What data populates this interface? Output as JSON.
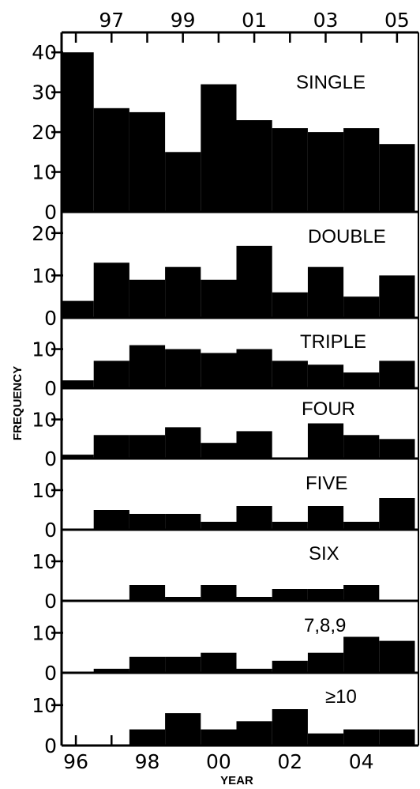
{
  "chart_data": {
    "type": "bar",
    "style": "stacked histogram panels",
    "xlabel": "YEAR",
    "ylabel": "FREQUENCY",
    "years": [
      1996,
      1997,
      1998,
      1999,
      2000,
      2001,
      2002,
      2003,
      2004,
      2005
    ],
    "bottom_tick_labels": [
      "96",
      "98",
      "00",
      "02",
      "04"
    ],
    "top_tick_labels": [
      "97",
      "99",
      "01",
      "03",
      "05"
    ],
    "bar_width_years": 1,
    "panels": [
      {
        "name": "SINGLE",
        "ylim": [
          0,
          45
        ],
        "yticks": [
          0,
          10,
          20,
          30,
          40
        ],
        "yticklabels": [
          "0",
          "10",
          "20",
          "30",
          "40"
        ],
        "x": [
          1996,
          1997,
          1998,
          1999,
          2000,
          2001,
          2002,
          2003,
          2004,
          2005
        ],
        "values": [
          40,
          26,
          25,
          15,
          32,
          23,
          21,
          20,
          21,
          17
        ]
      },
      {
        "name": "DOUBLE",
        "ylim": [
          0,
          25
        ],
        "yticks": [
          0,
          10,
          20
        ],
        "yticklabels": [
          "0",
          "10",
          "20"
        ],
        "x": [
          1996,
          1997,
          1998,
          1999,
          2000,
          2001,
          2002,
          2003,
          2004,
          2005
        ],
        "values": [
          4,
          13,
          9,
          12,
          9,
          17,
          6,
          12,
          5,
          10
        ]
      },
      {
        "name": "TRIPLE",
        "ylim": [
          0,
          18
        ],
        "yticks": [
          0,
          10
        ],
        "yticklabels": [
          "0",
          "10"
        ],
        "x": [
          1996,
          1997,
          1998,
          1999,
          2000,
          2001,
          2002,
          2003,
          2004,
          2005
        ],
        "values": [
          2,
          7,
          11,
          10,
          9,
          10,
          7,
          6,
          4,
          7
        ]
      },
      {
        "name": "FOUR",
        "ylim": [
          0,
          18
        ],
        "yticks": [
          0,
          10
        ],
        "yticklabels": [
          "0",
          "10"
        ],
        "x": [
          1996,
          1997,
          1998,
          1999,
          2000,
          2001,
          2002,
          2003,
          2004,
          2005
        ],
        "values": [
          1,
          6,
          6,
          8,
          4,
          7,
          0,
          9,
          6,
          5
        ]
      },
      {
        "name": "FIVE",
        "ylim": [
          0,
          18
        ],
        "yticks": [
          0,
          10
        ],
        "yticklabels": [
          "0",
          "10"
        ],
        "x": [
          1996,
          1997,
          1998,
          1999,
          2000,
          2001,
          2002,
          2003,
          2004,
          2005
        ],
        "values": [
          0,
          5,
          4,
          4,
          2,
          6,
          2,
          6,
          2,
          8
        ]
      },
      {
        "name": "SIX",
        "ylim": [
          0,
          18
        ],
        "yticks": [
          0,
          10
        ],
        "yticklabels": [
          "0",
          "10"
        ],
        "x": [
          1996,
          1997,
          1998,
          1999,
          2000,
          2001,
          2002,
          2003,
          2004,
          2005
        ],
        "values": [
          0,
          0,
          4,
          1,
          4,
          1,
          3,
          3,
          4,
          0
        ]
      },
      {
        "name": "7,8,9",
        "ylim": [
          0,
          18
        ],
        "yticks": [
          0,
          10
        ],
        "yticklabels": [
          "0",
          "10"
        ],
        "x": [
          1996,
          1997,
          1998,
          1999,
          2000,
          2001,
          2002,
          2003,
          2004,
          2005
        ],
        "values": [
          0,
          1,
          4,
          4,
          5,
          1,
          3,
          5,
          9,
          8
        ]
      },
      {
        "name": "≥10",
        "ylim": [
          0,
          18
        ],
        "yticks": [
          0,
          10
        ],
        "yticklabels": [
          "0",
          "10"
        ],
        "x": [
          1996,
          1997,
          1998,
          1999,
          2000,
          2001,
          2002,
          2003,
          2004,
          2005
        ],
        "values": [
          0,
          0,
          4,
          8,
          4,
          6,
          9,
          3,
          4,
          4
        ]
      }
    ]
  }
}
